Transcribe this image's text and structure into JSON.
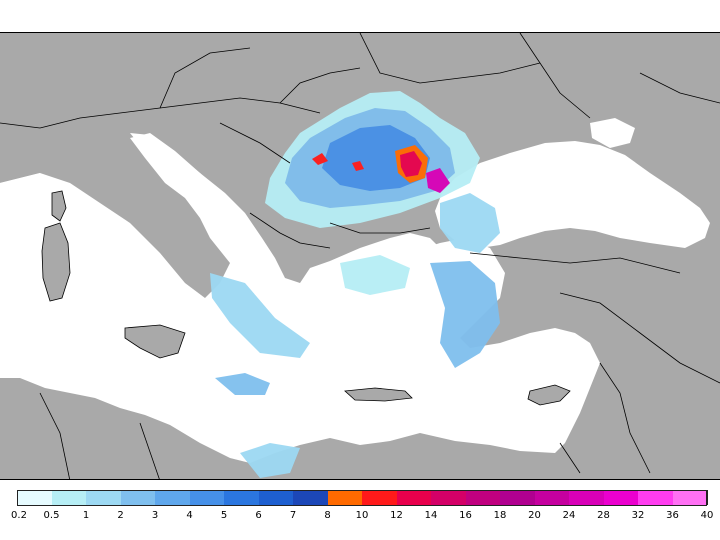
{
  "colors": {
    "land": "#a9a9a9",
    "sea": "#ffffff",
    "border": "#000000"
  },
  "legend": {
    "ticks": [
      "0.2",
      "0.5",
      "1",
      "2",
      "3",
      "4",
      "5",
      "6",
      "7",
      "8",
      "10",
      "12",
      "14",
      "16",
      "18",
      "20",
      "24",
      "28",
      "32",
      "36",
      "40"
    ],
    "bins": [
      "#e6fbff",
      "#b6eef5",
      "#9dd9f3",
      "#7fbfee",
      "#5fa7ec",
      "#4690e8",
      "#2b76df",
      "#1e5fd0",
      "#1c47b8",
      "#ff6a00",
      "#ff1a1a",
      "#e8004c",
      "#d40067",
      "#c0007f",
      "#b00090",
      "#c5009f",
      "#d800b8",
      "#eb00cf",
      "#ff3cf0",
      "#ff70f4"
    ]
  }
}
